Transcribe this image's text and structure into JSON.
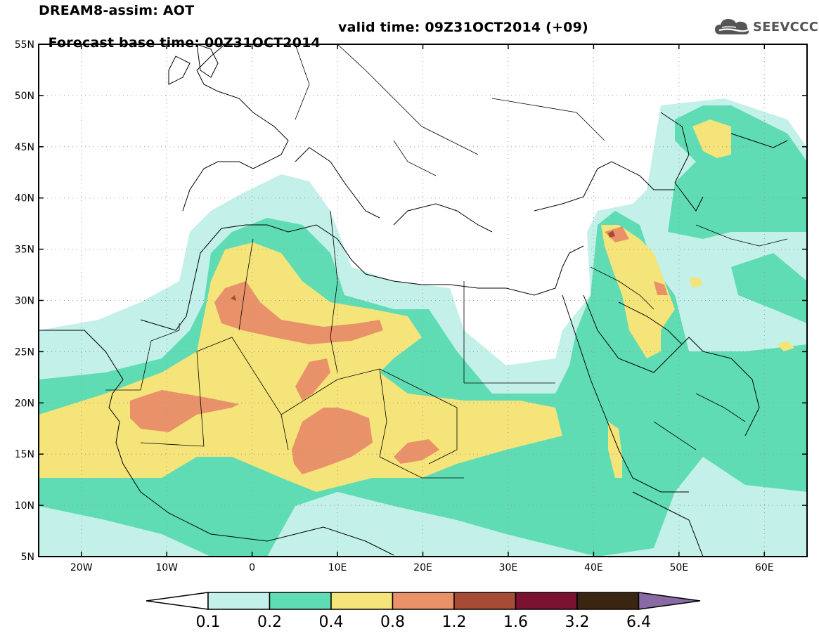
{
  "header": {
    "title": "DREAM8-assim: AOT",
    "base_time": "Forecast base time: 00Z31OCT2014",
    "valid_time": "valid time: 09Z31OCT2014 (+09)"
  },
  "logo": {
    "text": "SEEVCCC",
    "icon": "cloud-logo-icon"
  },
  "map": {
    "lon_range": [
      -25,
      65
    ],
    "lat_range": [
      5,
      55
    ],
    "lat_ticks": [
      "55N",
      "50N",
      "45N",
      "40N",
      "35N",
      "30N",
      "25N",
      "20N",
      "15N",
      "10N",
      "5N"
    ],
    "lon_ticks": [
      "20W",
      "10W",
      "0",
      "10E",
      "20E",
      "30E",
      "40E",
      "50E",
      "60E"
    ],
    "gridlines": true,
    "gridline_style": "dotted"
  },
  "colorbar": {
    "labels": [
      "0.1",
      "0.2",
      "0.4",
      "0.8",
      "1.2",
      "1.6",
      "3.2",
      "6.4"
    ],
    "colors": [
      "#c3f0e8",
      "#5fdcb4",
      "#f5e47a",
      "#e9926a",
      "#a84b36",
      "#7a1230",
      "#3a2412",
      "#8a6aa4"
    ],
    "under_color": "#ffffff",
    "over_color": "#8a6aa4"
  },
  "palette": {
    "c01": "#c3f0e8",
    "c02": "#5fdcb4",
    "c04": "#f5e47a",
    "c08": "#e9926a",
    "c12": "#a84b36"
  }
}
